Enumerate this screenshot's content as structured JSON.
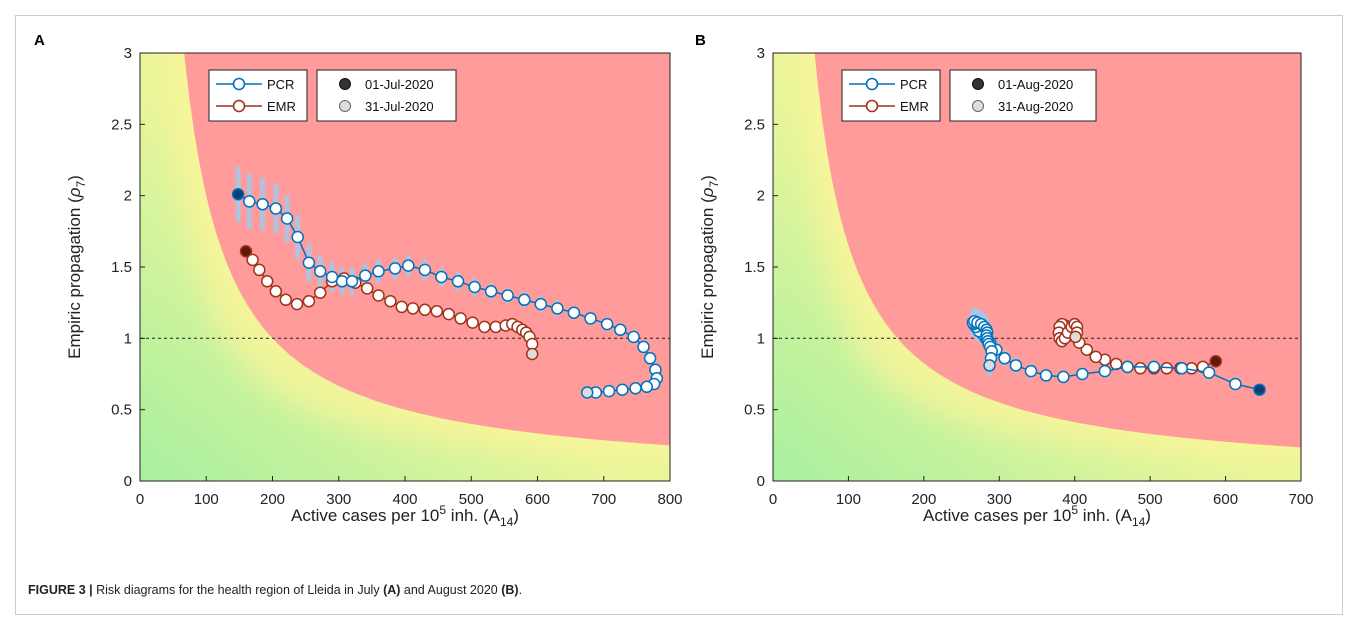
{
  "figure": {
    "caption_label": "FIGURE 3 |",
    "caption_text_1": " Risk diagrams for the health region of Lleida in July ",
    "caption_bold_1": "(A)",
    "caption_text_2": " and August 2020 ",
    "caption_bold_2": "(B)",
    "caption_text_3": "."
  },
  "colors": {
    "pcr": "#0072bd",
    "pcr_ci": "#a9c7e6",
    "emr": "#a0341a",
    "risk_high": "#ff9b9b",
    "risk_mid": "#fff59a",
    "risk_low": "#a8f0a0",
    "start_marker": "#333333",
    "end_marker": "#dddddd"
  },
  "chart_data": [
    {
      "panel": "A",
      "type": "line",
      "xlabel": "Active cases per 10^5 inh. (A_14)",
      "ylabel": "Empiric propagation (ρ_7)",
      "xlim": [
        0,
        800
      ],
      "ylim": [
        0,
        3
      ],
      "x_ticks": [
        "0",
        "100",
        "200",
        "300",
        "400",
        "500",
        "600",
        "700",
        "800"
      ],
      "y_ticks": [
        "0",
        "0.5",
        "1",
        "1.5",
        "2",
        "2.5",
        "3"
      ],
      "reference_line_y": 1,
      "background": "risk-gradient",
      "legend_series": [
        "PCR",
        "EMR"
      ],
      "legend_dates": [
        "01-Jul-2020",
        "31-Jul-2020"
      ],
      "series": [
        {
          "name": "PCR",
          "x": [
            148,
            165,
            185,
            205,
            222,
            238,
            255,
            272,
            290,
            305,
            320,
            340,
            360,
            385,
            405,
            430,
            455,
            480,
            505,
            530,
            555,
            580,
            605,
            630,
            655,
            680,
            705,
            725,
            745,
            760,
            770,
            778,
            780,
            776,
            765,
            748,
            728,
            708,
            688,
            675
          ],
          "y": [
            2.01,
            1.96,
            1.94,
            1.91,
            1.84,
            1.71,
            1.53,
            1.47,
            1.43,
            1.4,
            1.4,
            1.44,
            1.47,
            1.49,
            1.51,
            1.48,
            1.43,
            1.4,
            1.36,
            1.33,
            1.3,
            1.27,
            1.24,
            1.21,
            1.18,
            1.14,
            1.1,
            1.06,
            1.01,
            0.94,
            0.86,
            0.78,
            0.72,
            0.68,
            0.66,
            0.65,
            0.64,
            0.63,
            0.62,
            0.62
          ],
          "ci": [
            0.18,
            0.18,
            0.17,
            0.16,
            0.15,
            0.14,
            0.12,
            0.1,
            0.09,
            0.08,
            0.08,
            0.07,
            0.07,
            0.06,
            0.06,
            0.06,
            0.05,
            0.05,
            0.05,
            0.04,
            0.04,
            0.04,
            0.04,
            0.04,
            0.03,
            0.03,
            0.03,
            0.03,
            0.03,
            0.03,
            0.03,
            0.03,
            0.03,
            0.03,
            0.03,
            0.03,
            0.03,
            0.03,
            0.03,
            0.03
          ]
        },
        {
          "name": "EMR",
          "x": [
            160,
            170,
            180,
            192,
            205,
            220,
            237,
            255,
            272,
            290,
            308,
            325,
            343,
            360,
            378,
            395,
            412,
            430,
            448,
            466,
            484,
            502,
            520,
            537,
            552,
            562,
            570,
            577,
            583,
            588,
            592,
            592
          ],
          "y": [
            1.61,
            1.55,
            1.48,
            1.4,
            1.33,
            1.27,
            1.24,
            1.26,
            1.32,
            1.4,
            1.42,
            1.39,
            1.35,
            1.3,
            1.26,
            1.22,
            1.21,
            1.2,
            1.19,
            1.17,
            1.14,
            1.11,
            1.08,
            1.08,
            1.09,
            1.1,
            1.08,
            1.06,
            1.04,
            1.01,
            0.96,
            0.89
          ]
        }
      ]
    },
    {
      "panel": "B",
      "type": "line",
      "xlabel": "Active cases per 10^5 inh. (A_14)",
      "ylabel": "Empiric propagation (ρ_7)",
      "xlim": [
        0,
        700
      ],
      "ylim": [
        0,
        3
      ],
      "x_ticks": [
        "0",
        "100",
        "200",
        "300",
        "400",
        "500",
        "600",
        "700"
      ],
      "y_ticks": [
        "0",
        "0.5",
        "1",
        "1.5",
        "2",
        "2.5",
        "3"
      ],
      "reference_line_y": 1,
      "background": "risk-gradient",
      "legend_series": [
        "PCR",
        "EMR"
      ],
      "legend_dates": [
        "01-Aug-2020",
        "31-Aug-2020"
      ],
      "series": [
        {
          "name": "PCR",
          "x": [
            645,
            613,
            578,
            542,
            505,
            470,
            440,
            410,
            385,
            362,
            342,
            322,
            307,
            296,
            288,
            282,
            278,
            273,
            269,
            266,
            265,
            267,
            271,
            276,
            280,
            283,
            284,
            283,
            284,
            285,
            286,
            288,
            290,
            289,
            287
          ],
          "y": [
            0.64,
            0.68,
            0.76,
            0.79,
            0.8,
            0.8,
            0.77,
            0.75,
            0.73,
            0.74,
            0.77,
            0.81,
            0.86,
            0.92,
            0.97,
            1.0,
            1.03,
            1.05,
            1.08,
            1.1,
            1.11,
            1.12,
            1.11,
            1.1,
            1.08,
            1.06,
            1.04,
            1.02,
            1.0,
            0.98,
            0.96,
            0.94,
            0.91,
            0.86,
            0.81
          ],
          "ci": [
            0.03,
            0.03,
            0.03,
            0.03,
            0.03,
            0.03,
            0.03,
            0.03,
            0.03,
            0.03,
            0.04,
            0.04,
            0.04,
            0.04,
            0.05,
            0.05,
            0.06,
            0.06,
            0.07,
            0.07,
            0.08,
            0.08,
            0.08,
            0.08,
            0.08,
            0.07,
            0.07,
            0.06,
            0.06,
            0.06,
            0.06,
            0.06,
            0.06,
            0.06,
            0.06
          ]
        },
        {
          "name": "EMR",
          "x": [
            587,
            570,
            555,
            540,
            522,
            505,
            487,
            470,
            455,
            440,
            428,
            416,
            406,
            398,
            392,
            387,
            383,
            380,
            379,
            380,
            383,
            387,
            391,
            396,
            400,
            403,
            403,
            401
          ],
          "y": [
            0.84,
            0.8,
            0.79,
            0.79,
            0.79,
            0.79,
            0.79,
            0.8,
            0.82,
            0.85,
            0.87,
            0.92,
            0.97,
            1.02,
            1.06,
            1.09,
            1.1,
            1.08,
            1.04,
            1.0,
            0.98,
            1.0,
            1.04,
            1.08,
            1.1,
            1.08,
            1.04,
            1.01
          ]
        }
      ]
    }
  ]
}
